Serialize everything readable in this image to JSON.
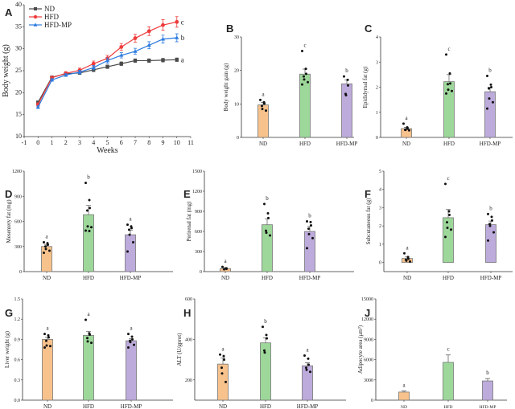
{
  "colors": {
    "ND": "#f8c28c",
    "HFD": "#9dd89a",
    "HFD-MP": "#bdabdc",
    "line_ND": "#4a4a4a",
    "line_HFD": "#ee3b3b",
    "line_HFD-MP": "#2d7be0",
    "edge": "#777777",
    "points": "#111111"
  },
  "chart_data": [
    {
      "panel": "A",
      "type": "line",
      "xlabel": "Weeks",
      "ylabel": "Body weight (g)",
      "xlim": [
        -1,
        11
      ],
      "ylim": [
        10,
        40
      ],
      "xticks": [
        "-1",
        "0",
        "1",
        "2",
        "3",
        "4",
        "5",
        "6",
        "7",
        "8",
        "9",
        "10",
        "11"
      ],
      "yticks": [
        "10",
        "15",
        "20",
        "25",
        "30",
        "35",
        "40"
      ],
      "x": [
        0,
        1,
        2,
        3,
        4,
        5,
        6,
        7,
        8,
        9,
        10
      ],
      "legend": "top-left",
      "series": [
        {
          "name": "ND",
          "marker": "square",
          "values": [
            17.8,
            23.5,
            24.3,
            24.5,
            25.2,
            25.9,
            26.6,
            27.3,
            27.3,
            27.4,
            27.5
          ],
          "errors": [
            0.3,
            0.3,
            0.3,
            0.3,
            0.4,
            0.4,
            0.4,
            0.4,
            0.4,
            0.4,
            0.4
          ],
          "letter": "a"
        },
        {
          "name": "HFD",
          "marker": "circle",
          "values": [
            17.3,
            23.4,
            24.4,
            25.1,
            26.6,
            27.8,
            30.4,
            32.4,
            34.0,
            35.4,
            36.1
          ],
          "errors": [
            0.4,
            0.3,
            0.4,
            0.5,
            0.6,
            0.7,
            0.8,
            0.9,
            1.0,
            1.2,
            1.2
          ],
          "letter": "c"
        },
        {
          "name": "HFD-MP",
          "marker": "triangle",
          "values": [
            16.7,
            22.9,
            24.0,
            24.7,
            25.7,
            27.3,
            28.5,
            29.4,
            30.8,
            32.2,
            32.5
          ],
          "errors": [
            0.3,
            0.3,
            0.3,
            0.4,
            0.5,
            0.6,
            0.6,
            0.7,
            0.8,
            0.9,
            0.9
          ],
          "letter": "b"
        }
      ]
    },
    {
      "panel": "B",
      "type": "bar",
      "ylabel": "Body weight gain (g)",
      "ylim": [
        0,
        30
      ],
      "yticks": [
        "0",
        "10",
        "20",
        "30"
      ],
      "categories": [
        "ND",
        "HFD",
        "HFD-MP"
      ],
      "values": [
        9.7,
        18.9,
        16.0
      ],
      "errors": [
        0.7,
        1.5,
        1.2
      ],
      "letters": [
        "a",
        "c",
        "b"
      ],
      "points": [
        [
          11.2,
          10.5,
          10.1,
          9.4,
          8.5,
          8.0
        ],
        [
          25.8,
          20.5,
          19.0,
          18.2,
          17.3,
          16.5,
          15.8
        ],
        [
          18.2,
          17.2,
          15.5,
          13.0,
          12.6
        ]
      ]
    },
    {
      "panel": "C",
      "type": "bar",
      "ylabel": "Epididymal fat (g)",
      "ylim": [
        0,
        4
      ],
      "yticks": [
        "0",
        "1",
        "2",
        "3",
        "4"
      ],
      "categories": [
        "ND",
        "HFD",
        "HFD-MP"
      ],
      "values": [
        0.35,
        2.22,
        1.82
      ],
      "errors": [
        0.05,
        0.28,
        0.18
      ],
      "letters": [
        "a",
        "c",
        "b"
      ],
      "points": [
        [
          0.55,
          0.4,
          0.35,
          0.3,
          0.3,
          0.28
        ],
        [
          3.3,
          2.55,
          2.15,
          2.12,
          1.9,
          1.85,
          1.75
        ],
        [
          2.45,
          2.1,
          2.0,
          1.95,
          1.55,
          1.4,
          1.15
        ]
      ]
    },
    {
      "panel": "D",
      "type": "bar",
      "ylabel": "Mesentery fat (mg)",
      "ylim": [
        0,
        1200
      ],
      "yticks": [
        "0",
        "300",
        "600",
        "900",
        "1200"
      ],
      "categories": [
        "ND",
        "HFD",
        "HFD-MP"
      ],
      "values": [
        300,
        680,
        440
      ],
      "errors": [
        25,
        110,
        55
      ],
      "letters": [
        "a",
        "b",
        "a"
      ],
      "points": [
        [
          350,
          340,
          320,
          300,
          270,
          250,
          225
        ],
        [
          1060,
          855,
          760,
          730,
          540,
          530,
          490,
          485
        ],
        [
          560,
          540,
          520,
          500,
          440,
          350,
          240
        ]
      ]
    },
    {
      "panel": "E",
      "type": "bar",
      "ylabel": "Perirenal fat (mg)",
      "ylim": [
        0,
        1500
      ],
      "yticks": [
        "0",
        "300",
        "600",
        "900",
        "1200",
        "1500"
      ],
      "categories": [
        "ND",
        "HFD",
        "HFD-MP"
      ],
      "values": [
        45,
        700,
        600
      ],
      "errors": [
        15,
        90,
        80
      ],
      "letters": [
        "a",
        "b",
        "b"
      ],
      "points": [
        [
          70,
          50,
          40,
          35
        ],
        [
          1010,
          870,
          800,
          610,
          580,
          540
        ],
        [
          750,
          740,
          690,
          640,
          560,
          500,
          350
        ]
      ]
    },
    {
      "panel": "F",
      "type": "bar",
      "ylabel": "Subcutaneous fat (g)",
      "ylim": [
        -0.5,
        5
      ],
      "yticks": [
        "0",
        "1",
        "2",
        "3",
        "4",
        "5"
      ],
      "categories": [
        "ND",
        "HFD",
        "HFD-MP"
      ],
      "values": [
        0.22,
        2.45,
        2.07
      ],
      "errors": [
        0.08,
        0.45,
        0.2
      ],
      "letters": [
        "a",
        "c",
        "b"
      ],
      "points": [
        [
          0.5,
          0.3,
          0.2,
          0.15,
          0.1,
          0.05
        ],
        [
          4.3,
          2.8,
          2.6,
          2.2,
          1.9,
          1.8,
          1.4
        ],
        [
          2.65,
          2.5,
          2.3,
          2.1,
          2.0,
          1.65,
          1.2
        ]
      ]
    },
    {
      "panel": "G",
      "type": "bar",
      "ylabel": "Liver weight (g)",
      "ylim": [
        0,
        1.5
      ],
      "yticks": [
        "0.0",
        "0.3",
        "0.6",
        "0.9",
        "1.2",
        "1.5"
      ],
      "categories": [
        "ND",
        "HFD",
        "HFD-MP"
      ],
      "values": [
        0.9,
        0.96,
        0.88
      ],
      "errors": [
        0.03,
        0.06,
        0.03
      ],
      "letters": [
        "a",
        "a",
        "a"
      ],
      "points": [
        [
          0.98,
          0.96,
          0.93,
          0.88,
          0.81,
          0.8,
          0.78
        ],
        [
          1.19,
          0.99,
          0.97,
          0.92,
          0.87,
          0.85
        ],
        [
          0.98,
          0.94,
          0.9,
          0.88,
          0.86,
          0.82,
          0.78
        ]
      ]
    },
    {
      "panel": "H",
      "type": "bar",
      "ylabel": "ALT (U/gprot)",
      "ylim": [
        100,
        600
      ],
      "yticks": [
        "200",
        "400",
        "600"
      ],
      "categories": [
        "ND",
        "HFD",
        "HFD-MP"
      ],
      "values": [
        278,
        383,
        270
      ],
      "errors": [
        30,
        25,
        15
      ],
      "letters": [
        "a",
        "b",
        "a"
      ],
      "points": [
        [
          325,
          318,
          300,
          260,
          232,
          190
        ],
        [
          462,
          422,
          405,
          345,
          335
        ],
        [
          320,
          305,
          275,
          260,
          250,
          240
        ]
      ]
    },
    {
      "panel": "J",
      "type": "bar",
      "ylabel": "Adipocyte area (μm²)",
      "ylim": [
        0,
        15000
      ],
      "yticks": [
        "0",
        "3000",
        "6000",
        "9000",
        "12000",
        "15000"
      ],
      "categories": [
        "ND",
        "HFD",
        "HFD-MP"
      ],
      "values": [
        1200,
        5600,
        2850
      ],
      "errors": [
        150,
        1100,
        350
      ],
      "letters": [
        "a",
        "c",
        "b"
      ],
      "points": [
        [],
        [],
        []
      ]
    }
  ]
}
